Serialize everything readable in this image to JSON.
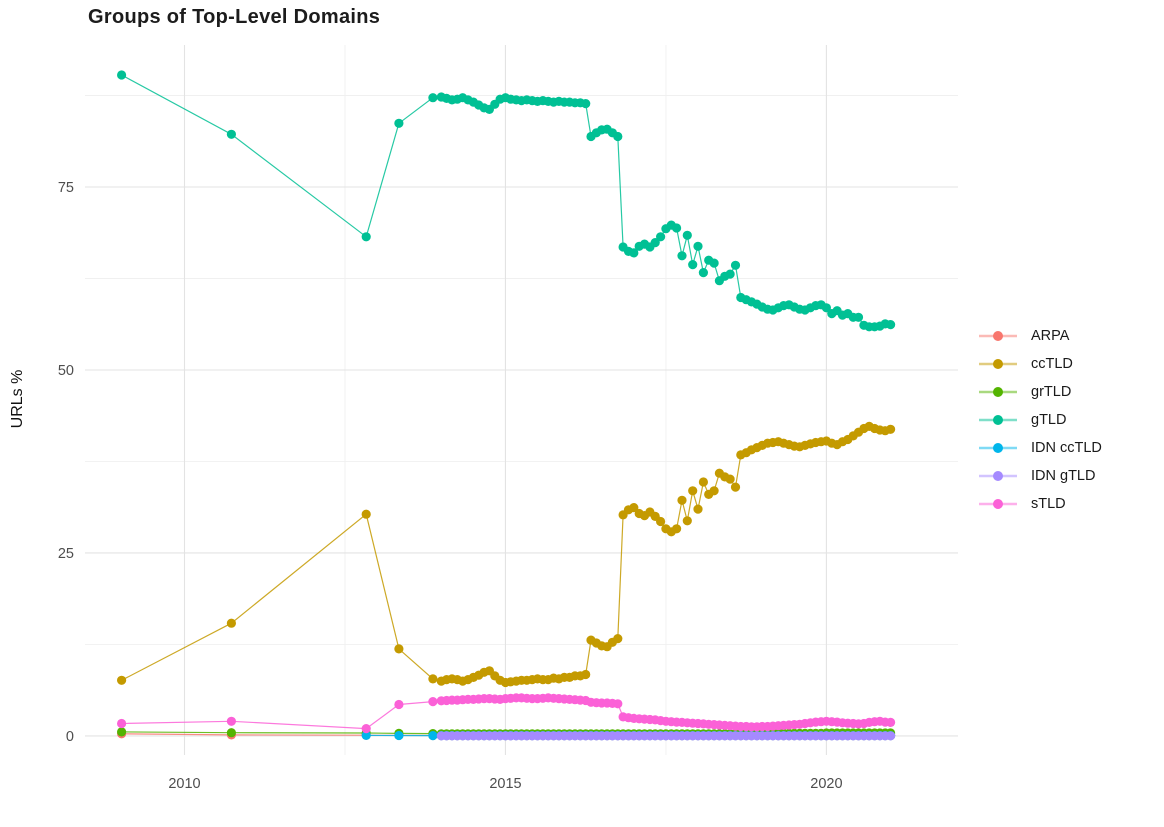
{
  "chart_data": {
    "type": "line",
    "title": "Groups of Top-Level Domains",
    "xlabel": "",
    "ylabel": "URLs %",
    "legend_position": "right",
    "grid": true,
    "x_domain": [
      2008.45,
      2022.05
    ],
    "y_domain": [
      -2.6,
      94.4
    ],
    "x_axis": {
      "major_ticks": [
        {
          "label": "2010",
          "value": 2010
        },
        {
          "label": "2015",
          "value": 2015
        },
        {
          "label": "2020",
          "value": 2020
        }
      ],
      "minor_gridlines": [
        2012.5,
        2017.5
      ]
    },
    "y_axis": {
      "major_ticks": [
        {
          "label": "0",
          "value": 0
        },
        {
          "label": "25",
          "value": 25
        },
        {
          "label": "50",
          "value": 50
        },
        {
          "label": "75",
          "value": 75
        }
      ],
      "minor_gridlines": [
        12.5,
        37.5,
        62.5,
        87.5
      ]
    },
    "series": [
      {
        "name": "ARPA",
        "color": "#F8766D",
        "pre": [
          [
            2009.02,
            0.3
          ],
          [
            2010.73,
            0.15
          ],
          [
            2012.83,
            0.1
          ],
          [
            2013.34,
            0.08
          ],
          [
            2013.87,
            0.06
          ]
        ],
        "dense": {
          "x0": 2014.0,
          "dx": 0.0833333,
          "runs": [
            [
              85,
              0.05
            ]
          ]
        }
      },
      {
        "name": "ccTLD",
        "color": "#C49A00",
        "pre": [
          [
            2009.02,
            7.6
          ],
          [
            2010.73,
            15.4
          ],
          [
            2012.83,
            30.3
          ],
          [
            2013.34,
            11.9
          ],
          [
            2013.87,
            7.8
          ]
        ],
        "dense": {
          "x0": 2014.0,
          "dx": 0.0833333,
          "values": [
            7.5,
            7.7,
            7.8,
            7.7,
            7.5,
            7.7,
            8.0,
            8.3,
            8.7,
            8.9,
            8.2,
            7.6,
            7.3,
            7.4,
            7.5,
            7.6,
            7.6,
            7.7,
            7.8,
            7.7,
            7.7,
            7.9,
            7.8,
            8.0,
            8.0,
            8.2,
            8.2,
            8.4,
            13.1,
            12.7,
            12.3,
            12.2,
            12.8,
            13.3,
            30.2,
            30.9,
            31.2,
            30.4,
            30.1,
            30.6,
            30.0,
            29.3,
            28.3,
            27.9,
            28.3,
            32.2,
            29.4,
            33.5,
            31.0,
            34.7,
            33.0,
            33.5,
            35.9,
            35.4,
            35.1,
            34.0,
            38.4,
            38.7,
            39.1,
            39.4,
            39.7,
            40.0,
            40.1,
            40.2,
            40.0,
            39.8,
            39.6,
            39.5,
            39.7,
            39.9,
            40.1,
            40.2,
            40.3,
            40.0,
            39.8,
            40.2,
            40.5,
            41.0,
            41.5,
            42.0,
            42.3,
            42.0,
            41.8,
            41.7,
            41.9
          ]
        }
      },
      {
        "name": "grTLD",
        "color": "#53B400",
        "pre": [
          [
            2009.02,
            0.55
          ],
          [
            2010.73,
            0.45
          ],
          [
            2012.83,
            0.4
          ],
          [
            2013.34,
            0.35
          ],
          [
            2013.87,
            0.32
          ]
        ],
        "dense": {
          "x0": 2014.0,
          "dx": 0.0833333,
          "runs": [
            [
              60,
              0.3
            ],
            [
              12,
              0.35
            ],
            [
              13,
              0.4
            ]
          ]
        }
      },
      {
        "name": "gTLD",
        "color": "#00C094",
        "pre": [
          [
            2009.02,
            90.3
          ],
          [
            2010.73,
            82.2
          ],
          [
            2012.83,
            68.2
          ],
          [
            2013.34,
            83.7
          ],
          [
            2013.87,
            87.2
          ]
        ],
        "dense": {
          "x0": 2014.0,
          "dx": 0.0833333,
          "values": [
            87.3,
            87.1,
            86.9,
            87.0,
            87.2,
            86.9,
            86.6,
            86.2,
            85.8,
            85.6,
            86.3,
            87.0,
            87.2,
            87.0,
            86.9,
            86.8,
            86.9,
            86.8,
            86.7,
            86.8,
            86.7,
            86.6,
            86.7,
            86.6,
            86.6,
            86.5,
            86.5,
            86.4,
            81.9,
            82.4,
            82.8,
            82.9,
            82.4,
            81.9,
            66.8,
            66.2,
            66.0,
            66.9,
            67.2,
            66.8,
            67.4,
            68.2,
            69.3,
            69.8,
            69.4,
            65.6,
            68.4,
            64.4,
            66.9,
            63.3,
            65.0,
            64.6,
            62.2,
            62.8,
            63.1,
            64.3,
            59.9,
            59.6,
            59.3,
            59.0,
            58.6,
            58.3,
            58.2,
            58.5,
            58.8,
            58.9,
            58.6,
            58.3,
            58.2,
            58.5,
            58.8,
            58.9,
            58.5,
            57.7,
            58.1,
            57.5,
            57.7,
            57.2,
            57.2,
            56.1,
            55.9,
            55.9,
            56.0,
            56.3,
            56.2
          ]
        }
      },
      {
        "name": "IDN ccTLD",
        "color": "#00B6EB",
        "pre": [
          [
            2012.83,
            0.08
          ],
          [
            2013.34,
            0.06
          ],
          [
            2013.87,
            0.05
          ]
        ],
        "dense": {
          "x0": 2014.0,
          "dx": 0.0833333,
          "runs": [
            [
              85,
              0.05
            ]
          ]
        }
      },
      {
        "name": "IDN gTLD",
        "color": "#A58AFF",
        "pre": [],
        "dense": {
          "x0": 2014.0,
          "dx": 0.0833333,
          "runs": [
            [
              85,
              0.02
            ]
          ]
        }
      },
      {
        "name": "sTLD",
        "color": "#FB61D7",
        "pre": [
          [
            2009.02,
            1.7
          ],
          [
            2010.73,
            2.0
          ],
          [
            2012.83,
            1.0
          ],
          [
            2013.34,
            4.3
          ],
          [
            2013.87,
            4.7
          ]
        ],
        "dense": {
          "x0": 2014.0,
          "dx": 0.0833333,
          "values": [
            4.8,
            4.85,
            4.9,
            4.9,
            4.95,
            5.0,
            5.0,
            5.05,
            5.1,
            5.1,
            5.05,
            5.0,
            5.1,
            5.15,
            5.2,
            5.2,
            5.15,
            5.1,
            5.1,
            5.15,
            5.2,
            5.15,
            5.1,
            5.05,
            5.0,
            4.95,
            4.9,
            4.85,
            4.6,
            4.55,
            4.5,
            4.5,
            4.45,
            4.4,
            2.6,
            2.5,
            2.4,
            2.35,
            2.3,
            2.25,
            2.2,
            2.1,
            2.0,
            1.95,
            1.9,
            1.85,
            1.8,
            1.75,
            1.7,
            1.65,
            1.6,
            1.55,
            1.5,
            1.45,
            1.4,
            1.35,
            1.3,
            1.3,
            1.25,
            1.25,
            1.3,
            1.3,
            1.35,
            1.4,
            1.45,
            1.5,
            1.55,
            1.6,
            1.7,
            1.8,
            1.9,
            1.95,
            2.0,
            1.95,
            1.9,
            1.8,
            1.75,
            1.7,
            1.65,
            1.7,
            1.85,
            1.95,
            2.0,
            1.9,
            1.85
          ]
        }
      }
    ],
    "style": {
      "grid_major_color": "#e3e3e3",
      "grid_minor_color": "#f0f0f0",
      "tick_label_color": "#4d4d4d",
      "point_radius": 4.6,
      "line_width": 1.2
    }
  }
}
